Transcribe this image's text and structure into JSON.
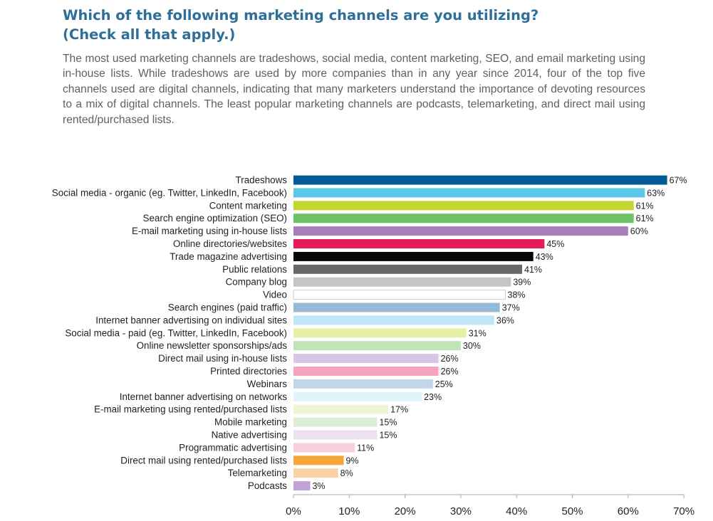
{
  "header": {
    "title_line1": "Which of the following marketing channels are you utilizing?",
    "title_line2": "(Check all that apply.)",
    "intro": "The most used marketing channels are tradeshows, social media, content marketing, SEO, and email marketing using in-house lists. While tradeshows are used by more companies than in any year since 2014, four of the top five channels used are digital channels, indicating that many marketers understand the importance of devoting resources to a mix of digital channels. The least popular marketing channels are podcasts, telemarketing, and direct mail using rented/purchased lists."
  },
  "chart_data": {
    "type": "bar",
    "orientation": "horizontal",
    "title": "",
    "xlabel": "",
    "ylabel": "",
    "xlim": [
      0,
      70
    ],
    "x_ticks": [
      "0%",
      "10%",
      "20%",
      "30%",
      "40%",
      "50%",
      "60%",
      "70%"
    ],
    "grid": false,
    "categories": [
      "Tradeshows",
      "Social media - organic (eg. Twitter, LinkedIn, Facebook)",
      "Content marketing",
      "Search engine optimization (SEO)",
      "E-mail marketing using in-house lists",
      "Online directories/websites",
      "Trade magazine advertising",
      "Public relations",
      "Company blog",
      "Video",
      "Search engines (paid traffic)",
      "Internet banner advertising on individual sites",
      "Social media - paid (eg. Twitter, LinkedIn, Facebook)",
      "Online newsletter sponsorships/ads",
      "Direct mail using in-house lists",
      "Printed directories",
      "Webinars",
      "Internet banner advertising on networks",
      "E-mail marketing using rented/purchased lists",
      "Mobile marketing",
      "Native advertising",
      "Programmatic advertising",
      "Direct mail using rented/purchased lists",
      "Telemarketing",
      "Podcasts"
    ],
    "values": [
      67,
      63,
      61,
      61,
      60,
      45,
      43,
      41,
      39,
      38,
      37,
      36,
      31,
      30,
      26,
      26,
      25,
      23,
      17,
      15,
      15,
      11,
      9,
      8,
      3
    ],
    "value_labels": [
      "67%",
      "63%",
      "61%",
      "61%",
      "60%",
      "45%",
      "43%",
      "41%",
      "39%",
      "38%",
      "37%",
      "36%",
      "31%",
      "30%",
      "26%",
      "26%",
      "25%",
      "23%",
      "17%",
      "15%",
      "15%",
      "11%",
      "9%",
      "8%",
      "3%"
    ],
    "colors": [
      "#005b96",
      "#5bc8e8",
      "#c3d52f",
      "#6cc067",
      "#a77dba",
      "#e8195a",
      "#050505",
      "#676767",
      "#c5c5c5",
      "#ffffff",
      "#96b9d6",
      "#bfe6f6",
      "#e8f0a3",
      "#c2e3b7",
      "#d9c5e4",
      "#f5a4be",
      "#c2d6ea",
      "#e1f3fb",
      "#eff5d3",
      "#daefd6",
      "#ece1f1",
      "#f9cfe0",
      "#f6a53a",
      "#fad1a2",
      "#c1a2d6"
    ],
    "outline_color": "#cccccc"
  }
}
